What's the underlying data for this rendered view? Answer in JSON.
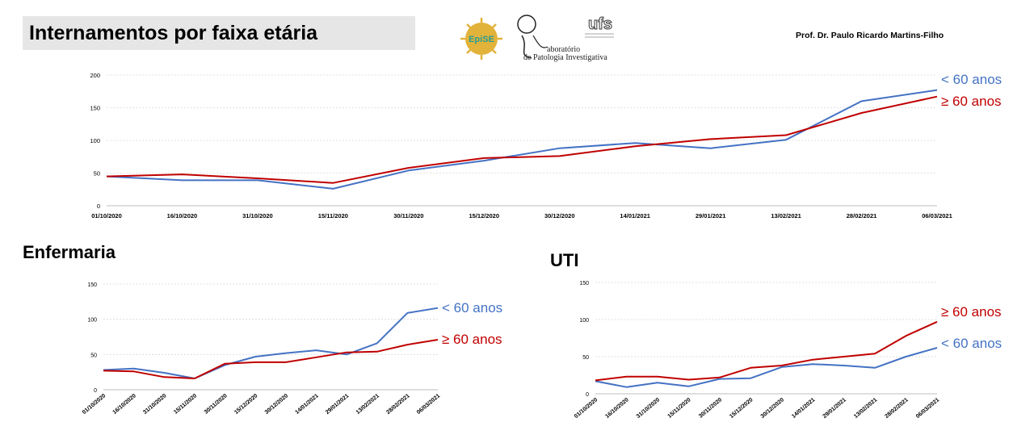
{
  "header": {
    "title": "Internamentos por faixa etária",
    "author": "Prof. Dr. Paulo Ricardo Martins-Filho",
    "logo_epise_text": "EpiSE",
    "lab_line1": "aboratório",
    "lab_line2": "de Patologia Investigativa",
    "ufs_text": "ufs"
  },
  "sections": {
    "ward_title": "Enfermaria",
    "icu_title": "UTI"
  },
  "colors": {
    "under60": "#4472c4",
    "over60": "#c00000",
    "grid": "#d9d9d9"
  },
  "chart_data": [
    {
      "type": "line",
      "id": "main",
      "categories": [
        "01/10/2020",
        "16/10/2020",
        "31/10/2020",
        "15/11/2020",
        "30/11/2020",
        "15/12/2020",
        "30/12/2020",
        "14/01/2021",
        "29/01/2021",
        "13/02/2021",
        "28/02/2021",
        "06/03/2021"
      ],
      "ylim": [
        0,
        200
      ],
      "yticks": [
        0,
        50,
        100,
        150,
        200
      ],
      "grid": true,
      "series": [
        {
          "name": "< 60 anos",
          "color": "#4472c4",
          "values": [
            45,
            39,
            39,
            26,
            54,
            69,
            88,
            96,
            88,
            101,
            160,
            177
          ]
        },
        {
          "name": "≥ 60 anos",
          "color": "#c00000",
          "values": [
            45,
            48,
            42,
            35,
            58,
            73,
            76,
            91,
            102,
            108,
            142,
            167
          ]
        }
      ]
    },
    {
      "type": "line",
      "id": "enfermaria",
      "title": "Enfermaria",
      "categories": [
        "01/10/2020",
        "16/10/2020",
        "31/10/2020",
        "15/11/2020",
        "30/11/2020",
        "15/12/2020",
        "30/12/2020",
        "14/01/2021",
        "29/01/2021",
        "13/02/2021",
        "28/02/2021",
        "06/03/2021"
      ],
      "ylim": [
        0,
        150
      ],
      "yticks": [
        0,
        50,
        100,
        150
      ],
      "grid": true,
      "series": [
        {
          "name": "< 60 anos",
          "color": "#4472c4",
          "values": [
            28,
            30,
            24,
            16,
            35,
            47,
            52,
            56,
            50,
            66,
            109,
            116
          ]
        },
        {
          "name": "≥ 60 anos",
          "color": "#c00000",
          "values": [
            27,
            26,
            18,
            16,
            37,
            39,
            39,
            46,
            53,
            54,
            64,
            71
          ]
        }
      ]
    },
    {
      "type": "line",
      "id": "uti",
      "title": "UTI",
      "categories": [
        "01/10/2020",
        "16/10/2020",
        "31/10/2020",
        "15/11/2020",
        "30/11/2020",
        "15/12/2020",
        "30/12/2020",
        "14/01/2021",
        "29/01/2021",
        "13/02/2021",
        "28/02/2021",
        "06/03/2021"
      ],
      "ylim": [
        0,
        150
      ],
      "yticks": [
        0,
        50,
        100,
        150
      ],
      "grid": true,
      "series": [
        {
          "name": "< 60 anos",
          "color": "#4472c4",
          "values": [
            17,
            9,
            15,
            10,
            20,
            21,
            36,
            40,
            38,
            35,
            50,
            62
          ]
        },
        {
          "name": "≥ 60 anos",
          "color": "#c00000",
          "values": [
            18,
            23,
            23,
            19,
            22,
            35,
            38,
            46,
            50,
            54,
            78,
            97
          ]
        }
      ]
    }
  ]
}
